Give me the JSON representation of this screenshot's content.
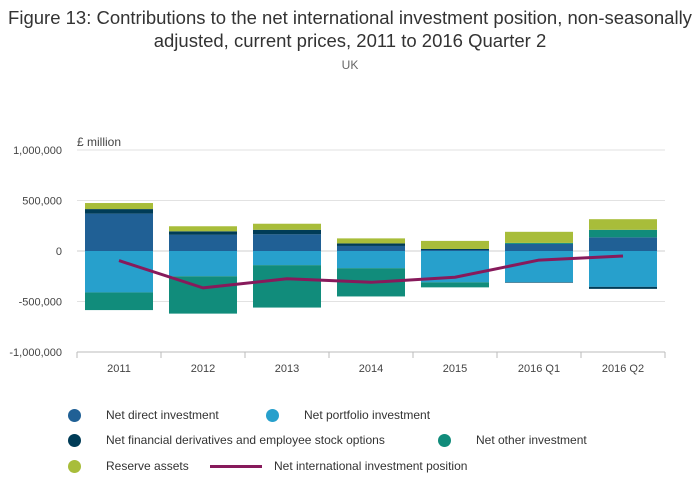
{
  "title": "Figure 13: Contributions to the net international investment position, non-seasonally adjusted, current prices, 2011 to 2016 Quarter 2",
  "subtitle": "UK",
  "chart_data": {
    "type": "bar",
    "stacked": true,
    "ylabel": "£ million",
    "ylim": [
      -1000000,
      1000000
    ],
    "yticks": [
      1000000,
      500000,
      0,
      -500000,
      -1000000
    ],
    "ytick_labels": [
      "1,000,000",
      "500,000",
      "0",
      "-500,000",
      "-1,000,000"
    ],
    "categories": [
      "2011",
      "2012",
      "2013",
      "2014",
      "2015",
      "2016 Q1",
      "2016 Q2"
    ],
    "series": [
      {
        "name": "Net direct investment",
        "color": "#206095",
        "values": [
          370000,
          160000,
          165000,
          50000,
          10000,
          70000,
          135000
        ]
      },
      {
        "name": "Net portfolio investment",
        "color": "#27a0cc",
        "values": [
          -410000,
          -250000,
          -140000,
          -170000,
          -310000,
          -310000,
          -355000
        ]
      },
      {
        "name": "Net financial derivatives and employee stock options",
        "color": "#003c57",
        "values": [
          45000,
          35000,
          45000,
          25000,
          10000,
          -5000,
          -20000
        ]
      },
      {
        "name": "Net other investment",
        "color": "#118c7b",
        "values": [
          -175000,
          -370000,
          -420000,
          -280000,
          -50000,
          10000,
          75000
        ]
      },
      {
        "name": "Reserve assets",
        "color": "#a8bd3a",
        "values": [
          60000,
          50000,
          60000,
          50000,
          80000,
          110000,
          105000
        ]
      }
    ],
    "line_series": {
      "name": "Net international investment position",
      "color": "#871a5b",
      "values": [
        -95000,
        -365000,
        -275000,
        -310000,
        -260000,
        -90000,
        -50000
      ]
    },
    "legend_position": "bottom"
  }
}
